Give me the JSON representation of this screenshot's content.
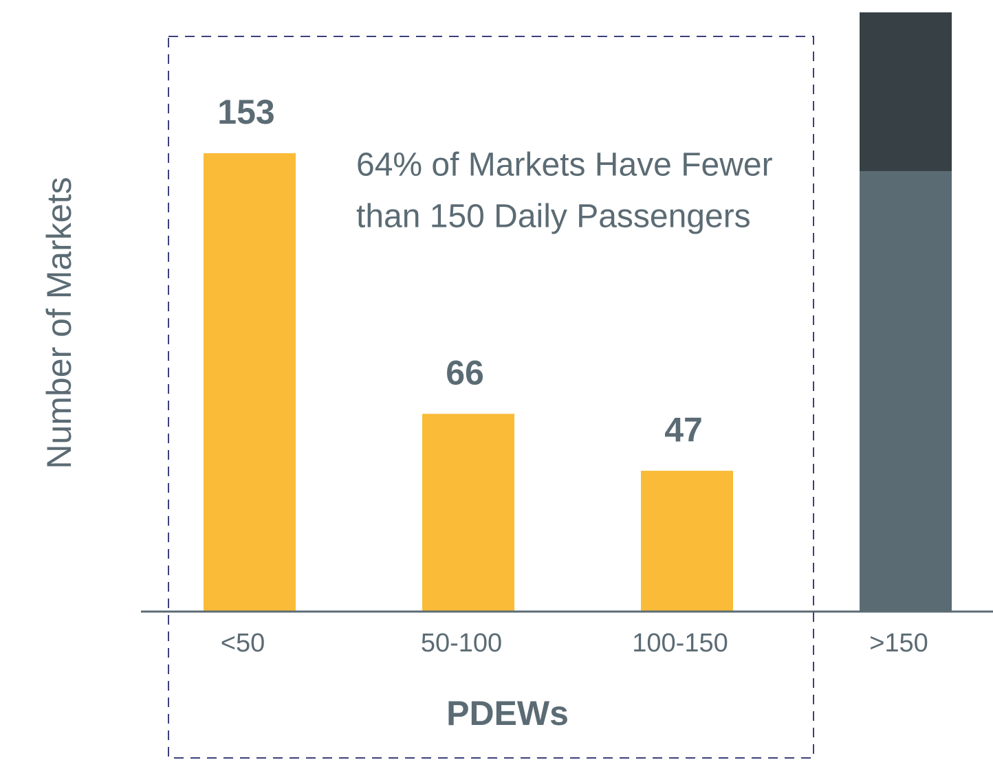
{
  "chart_data": {
    "type": "bar",
    "categories": [
      "<50",
      "50-100",
      "100-150",
      ">150"
    ],
    "values": [
      153,
      66,
      47,
      200
    ],
    "value_labels": [
      "153",
      "66",
      "47",
      null
    ],
    "colors": [
      "#f9bb38",
      "#f9bb38",
      "#f9bb38",
      "#5b6b74"
    ],
    "ylim": [
      0,
      200
    ],
    "x_label": "PDEWs",
    "y_label": "Number of Markets",
    "annotation": [
      "64% of Markets Have Fewer",
      "than 150 Daily Passengers"
    ],
    "grid": false
  }
}
